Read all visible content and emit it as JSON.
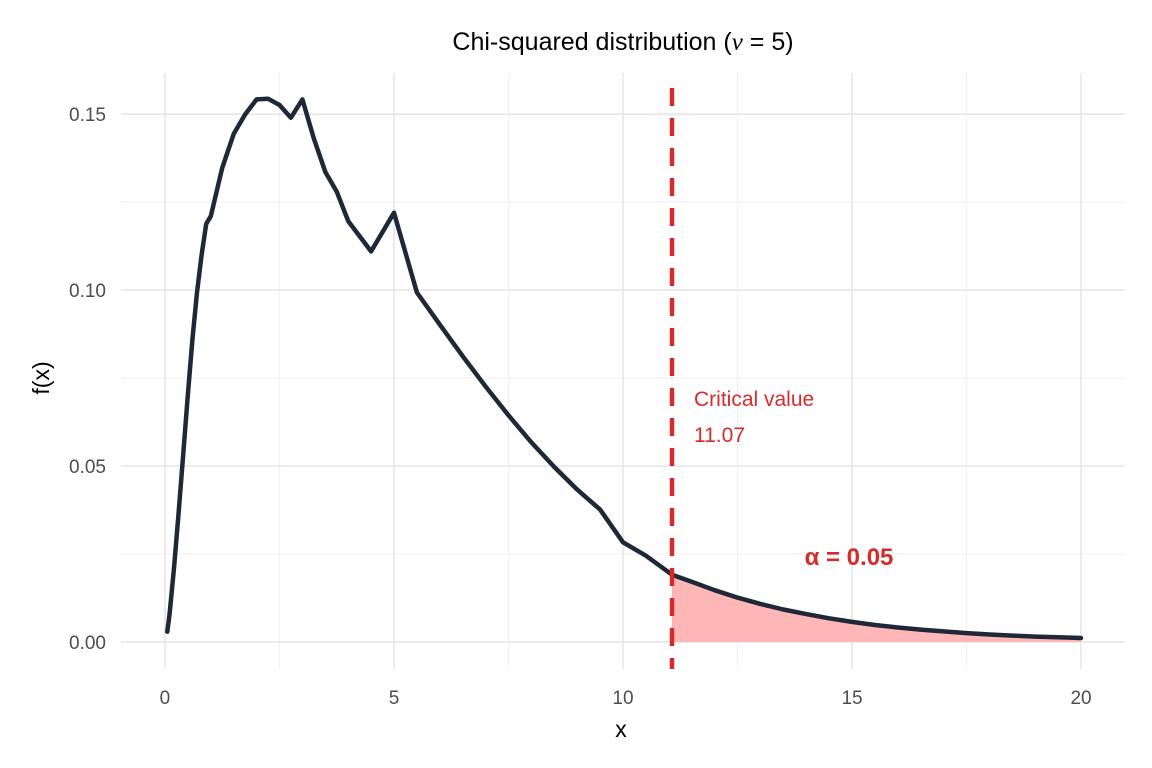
{
  "chart_data": {
    "type": "line",
    "title_prefix": "Chi-squared distribution (",
    "title_symbol": "ν",
    "title_equals": " = ",
    "title_value": "5",
    "title_suffix": ")",
    "xlabel": "x",
    "ylabel": "f(x)",
    "xlim": [
      -0.96,
      20.96
    ],
    "ylim": [
      -0.0077,
      0.1617
    ],
    "x_ticks": [
      0,
      5,
      10,
      15,
      20
    ],
    "x_tick_labels": [
      "0",
      "5",
      "10",
      "15",
      "20"
    ],
    "y_ticks": [
      0.0,
      0.05,
      0.1,
      0.15
    ],
    "y_tick_labels": [
      "0.00",
      "0.05",
      "0.10",
      "0.15"
    ],
    "x_minor_ticks": [
      2.5,
      7.5,
      12.5,
      17.5
    ],
    "y_minor_ticks": [
      0.025,
      0.075,
      0.125
    ],
    "grid": true,
    "series": [
      {
        "x": [
          0.05,
          0.1,
          0.2,
          0.3,
          0.4,
          0.5,
          0.6,
          0.7,
          0.8,
          0.9,
          1.0,
          1.25,
          1.5,
          1.75,
          2.0,
          2.25,
          2.5,
          2.75,
          3.0,
          3.25,
          3.5,
          3.75,
          4.0,
          4.5,
          5.0,
          5.5,
          6.0,
          6.5,
          7.0,
          7.5,
          8.0,
          8.5,
          9.0,
          9.5,
          10.0,
          10.5,
          11.07,
          11.5,
          12.0,
          12.5,
          13.0,
          13.5,
          14.0,
          14.5,
          15.0,
          15.5,
          16.0,
          16.5,
          17.0,
          17.5,
          18.0,
          18.5,
          19.0,
          19.5,
          20.0
        ],
        "y": [
          0.0029,
          0.008,
          0.0213,
          0.037,
          0.0536,
          0.0704,
          0.0862,
          0.0993,
          0.11,
          0.1188,
          0.121,
          0.1347,
          0.1444,
          0.1499,
          0.1542,
          0.1544,
          0.1526,
          0.149,
          0.1542,
          0.1431,
          0.1336,
          0.128,
          0.1196,
          0.111,
          0.122,
          0.0993,
          0.0902,
          0.0812,
          0.0726,
          0.0644,
          0.0567,
          0.0497,
          0.0433,
          0.0376,
          0.0283,
          0.0245,
          0.0191,
          0.0171,
          0.0147,
          0.0126,
          0.0108,
          0.0092,
          0.0079,
          0.0067,
          0.0057,
          0.0048,
          0.0041,
          0.0035,
          0.003,
          0.0025,
          0.0021,
          0.0018,
          0.0015,
          0.0013,
          0.0011
        ]
      }
    ],
    "critical_value": 11.07,
    "annotation_line1": "Critical value",
    "annotation_line2": "11.07",
    "alpha_label": "α = 0.05",
    "curve_color": "#1f2838",
    "critical_color": "#d62b2b",
    "shade_color": "#ffb6b6"
  }
}
